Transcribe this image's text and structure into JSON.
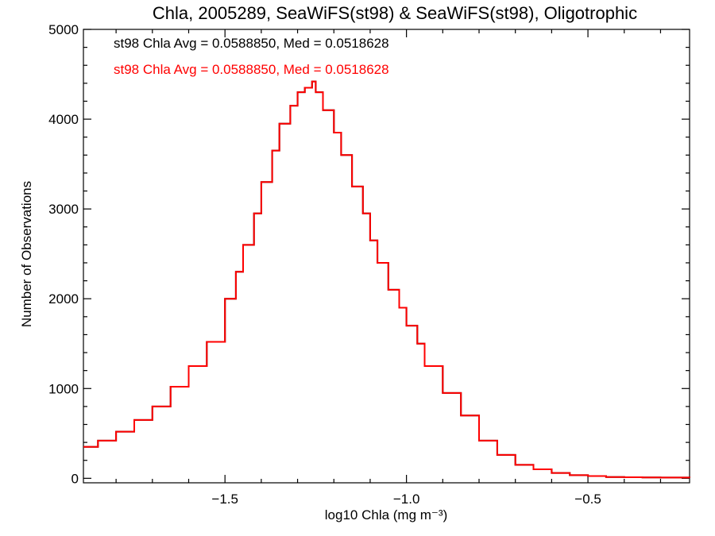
{
  "chart_data": {
    "type": "line",
    "title": "Chla, 2005289, SeaWiFS(st98) & SeaWiFS(st98), Oligotrophic",
    "xlabel": "log10 Chla (mg m⁻³)",
    "ylabel": "Number of Observations",
    "xlim": [
      -1.89,
      -0.22
    ],
    "ylim": [
      -50,
      5000
    ],
    "xticks": [
      -1.5,
      -1.0,
      -0.5
    ],
    "xtick_labels": [
      "−1.5",
      "−1.0",
      "−0.5"
    ],
    "yticks": [
      0,
      1000,
      2000,
      3000,
      4000,
      5000
    ],
    "ytick_labels": [
      "0",
      "1000",
      "2000",
      "3000",
      "4000",
      "5000"
    ],
    "grid": false,
    "annotations": [
      {
        "text": "st98 Chla Avg = 0.0588850, Med = 0.0518628",
        "color": "#000000"
      },
      {
        "text": "st98 Chla Avg = 0.0588850, Med = 0.0518628",
        "color": "#ff0000"
      }
    ],
    "series": [
      {
        "style": "histogram-step",
        "colors": [
          "#000000",
          "#ff0000"
        ],
        "x": [
          -1.89,
          -1.85,
          -1.8,
          -1.75,
          -1.7,
          -1.65,
          -1.6,
          -1.55,
          -1.5,
          -1.47,
          -1.45,
          -1.42,
          -1.4,
          -1.37,
          -1.35,
          -1.32,
          -1.3,
          -1.28,
          -1.26,
          -1.25,
          -1.23,
          -1.2,
          -1.18,
          -1.15,
          -1.12,
          -1.1,
          -1.08,
          -1.05,
          -1.02,
          -1.0,
          -0.97,
          -0.95,
          -0.9,
          -0.85,
          -0.8,
          -0.75,
          -0.7,
          -0.65,
          -0.6,
          -0.55,
          -0.5,
          -0.45,
          -0.4,
          -0.35,
          -0.3,
          -0.22
        ],
        "y": [
          350,
          420,
          520,
          650,
          800,
          1020,
          1250,
          1520,
          2000,
          2300,
          2600,
          2950,
          3300,
          3650,
          3950,
          4150,
          4300,
          4350,
          4420,
          4300,
          4100,
          3850,
          3600,
          3250,
          2950,
          2650,
          2400,
          2100,
          1900,
          1700,
          1500,
          1250,
          950,
          700,
          420,
          260,
          150,
          100,
          60,
          35,
          25,
          15,
          12,
          10,
          8,
          5
        ]
      }
    ]
  }
}
